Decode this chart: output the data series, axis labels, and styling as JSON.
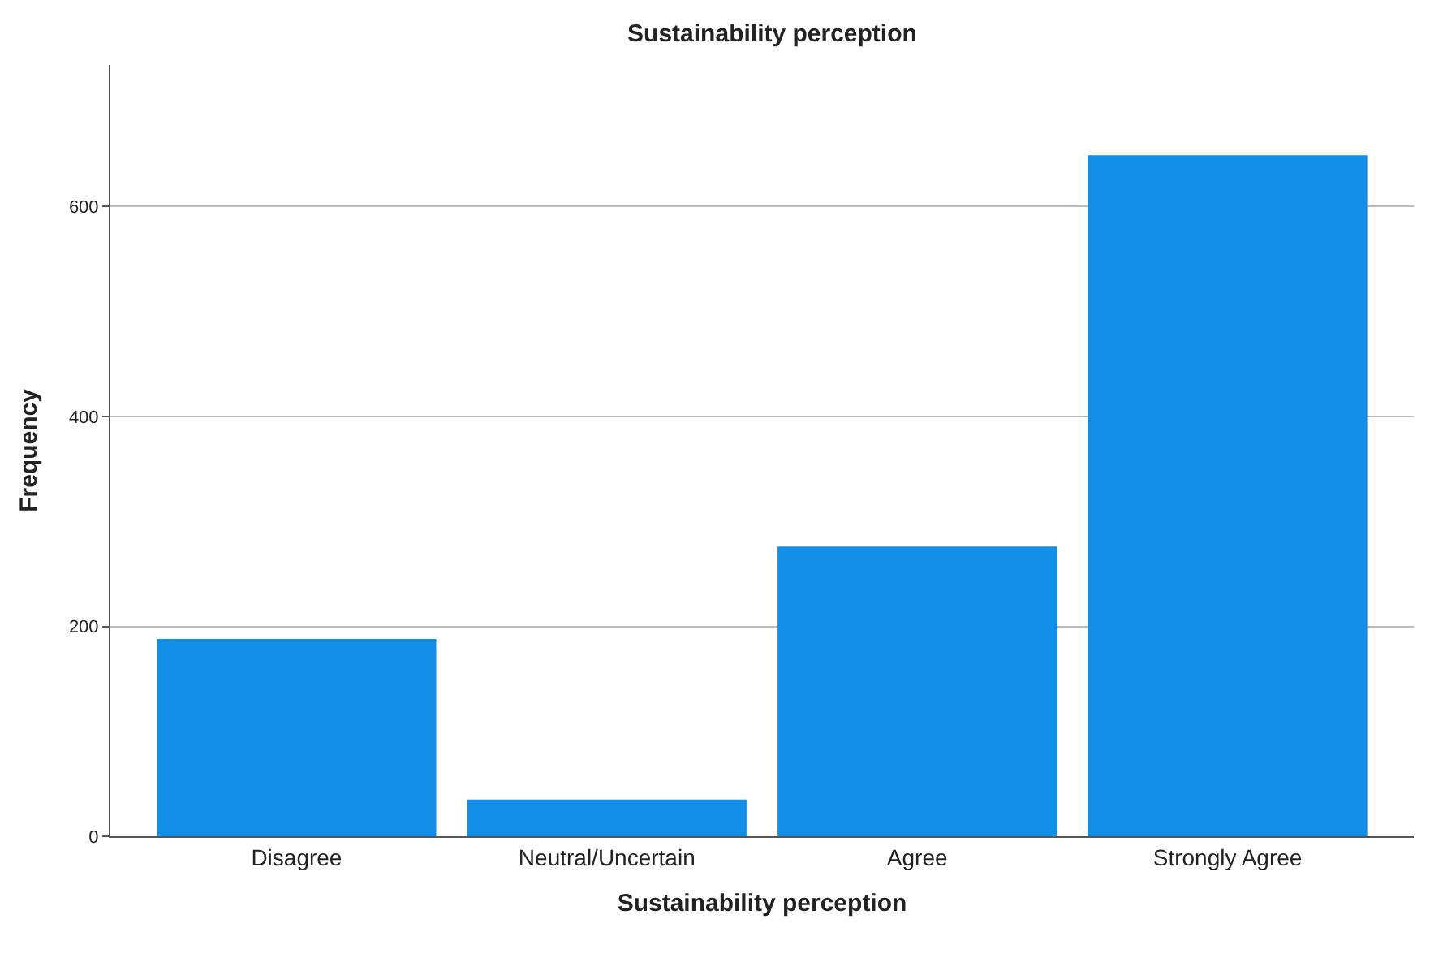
{
  "chart_data": {
    "type": "bar",
    "title": "Sustainability perception",
    "xlabel": "Sustainability perception",
    "ylabel": "Frequency",
    "categories": [
      "Disagree",
      "Neutral/Uncertain",
      "Agree",
      "Strongly Agree"
    ],
    "values": [
      188,
      35,
      276,
      649
    ],
    "color": "#118ee6",
    "ylim": [
      0,
      735
    ],
    "yticks": [
      0,
      200,
      400,
      600
    ],
    "grid": "y"
  }
}
